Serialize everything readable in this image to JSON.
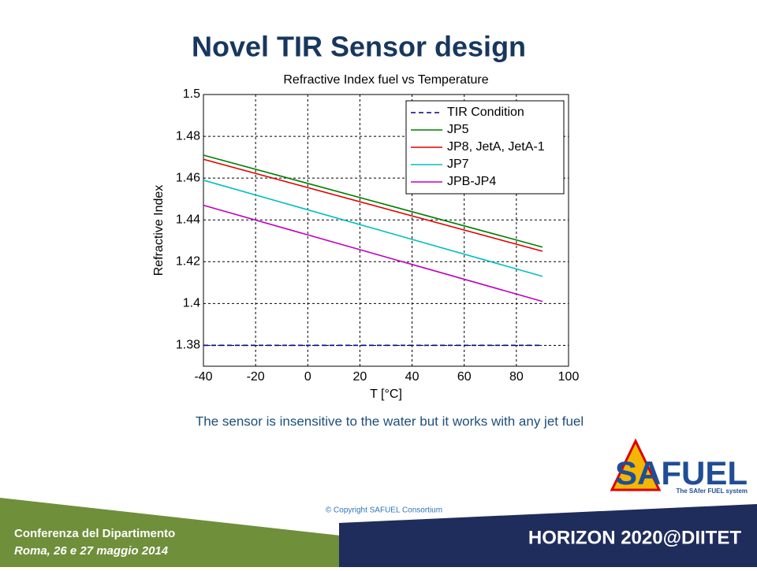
{
  "slide": {
    "title": "Novel TIR Sensor design",
    "caption": "The sensor is insensitive to the water but it works with any jet fuel",
    "copyright": "© Copyright SAFUEL Consortium",
    "footer_line1": "Conferenza del Dipartimento",
    "footer_line2": "Roma, 26 e 27 maggio 2014",
    "footer_brand": "HORIZON 2020@DIITET",
    "logo_name": "SAFUEL",
    "logo_tagline": "The SAfer FUEL system"
  },
  "chart_data": {
    "type": "line",
    "title": "Refractive Index fuel vs Temperature",
    "x_label": "T [°C]",
    "y_label": "Refractive Index",
    "x": [
      -40,
      90
    ],
    "series": [
      {
        "name": "TIR Condition",
        "color": "#00008b",
        "line_style": "dashed",
        "values": [
          1.38,
          1.38
        ]
      },
      {
        "name": "JP5",
        "color": "#007f00",
        "line_style": "solid",
        "values": [
          1.471,
          1.427
        ]
      },
      {
        "name": "JP8, JetA, JetA-1",
        "color": "#e00000",
        "line_style": "solid",
        "values": [
          1.469,
          1.425
        ]
      },
      {
        "name": "JP7",
        "color": "#00bfbf",
        "line_style": "solid",
        "values": [
          1.459,
          1.413
        ]
      },
      {
        "name": "JPB-JP4",
        "color": "#bf00bf",
        "line_style": "solid",
        "values": [
          1.447,
          1.401
        ]
      }
    ],
    "xlim": [
      -40,
      100
    ],
    "xticks": [
      -40,
      -20,
      0,
      20,
      40,
      60,
      80,
      100
    ],
    "ylim": [
      1.37,
      1.5
    ],
    "yticks": [
      1.38,
      1.4,
      1.42,
      1.44,
      1.46,
      1.48,
      1.5
    ],
    "grid": true,
    "legend": "upper right"
  }
}
